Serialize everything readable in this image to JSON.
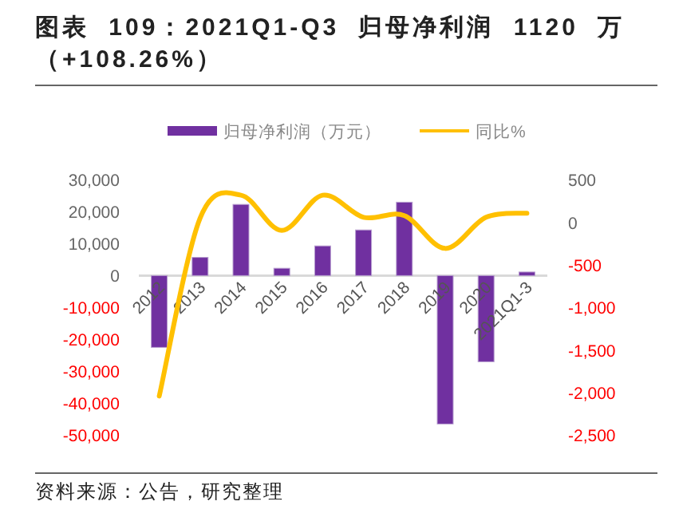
{
  "chart_data": {
    "type": "bar",
    "title": "图表 109：2021Q1-Q3 归母净利润 1120 万（+108.26%）",
    "categories": [
      "2012",
      "2013",
      "2014",
      "2015",
      "2016",
      "2017",
      "2018",
      "2019",
      "2020",
      "2021Q1-3"
    ],
    "series": [
      {
        "name": "归母净利润（万元）",
        "color": "#7030a0",
        "values": [
          -22500,
          5700,
          22300,
          2300,
          9300,
          14300,
          23000,
          -46500,
          -27000,
          1120
        ]
      },
      {
        "name": "同比%",
        "type": "line",
        "axis": "y2",
        "color": "#ffc000",
        "values": [
          -2040,
          50,
          320,
          -95,
          320,
          60,
          80,
          -306,
          60,
          108.26
        ]
      }
    ],
    "ylim": [
      -50000,
      30000
    ],
    "yticks": [
      {
        "value": 30000,
        "label": "30,000"
      },
      {
        "value": 20000,
        "label": "20,000"
      },
      {
        "value": 10000,
        "label": "10,000"
      },
      0,
      {
        "value": -10000,
        "label": "-10,000"
      },
      {
        "value": -20000,
        "label": "-20,000"
      },
      {
        "value": -30000,
        "label": "-30,000"
      },
      {
        "value": -40000,
        "label": "-40,000"
      },
      {
        "value": -50000,
        "label": "-50,000"
      }
    ],
    "y2lim": [
      -2500,
      500
    ],
    "y2ticks": [
      500,
      0,
      -500,
      {
        "value": -1000,
        "label": "-1,000"
      },
      {
        "value": -1500,
        "label": "-1,500"
      },
      {
        "value": -2000,
        "label": "-2,000"
      },
      {
        "value": -2500,
        "label": "-2,500"
      }
    ],
    "legend": "top",
    "annotations": [
      "资料来源：公告，研究整理"
    ]
  }
}
